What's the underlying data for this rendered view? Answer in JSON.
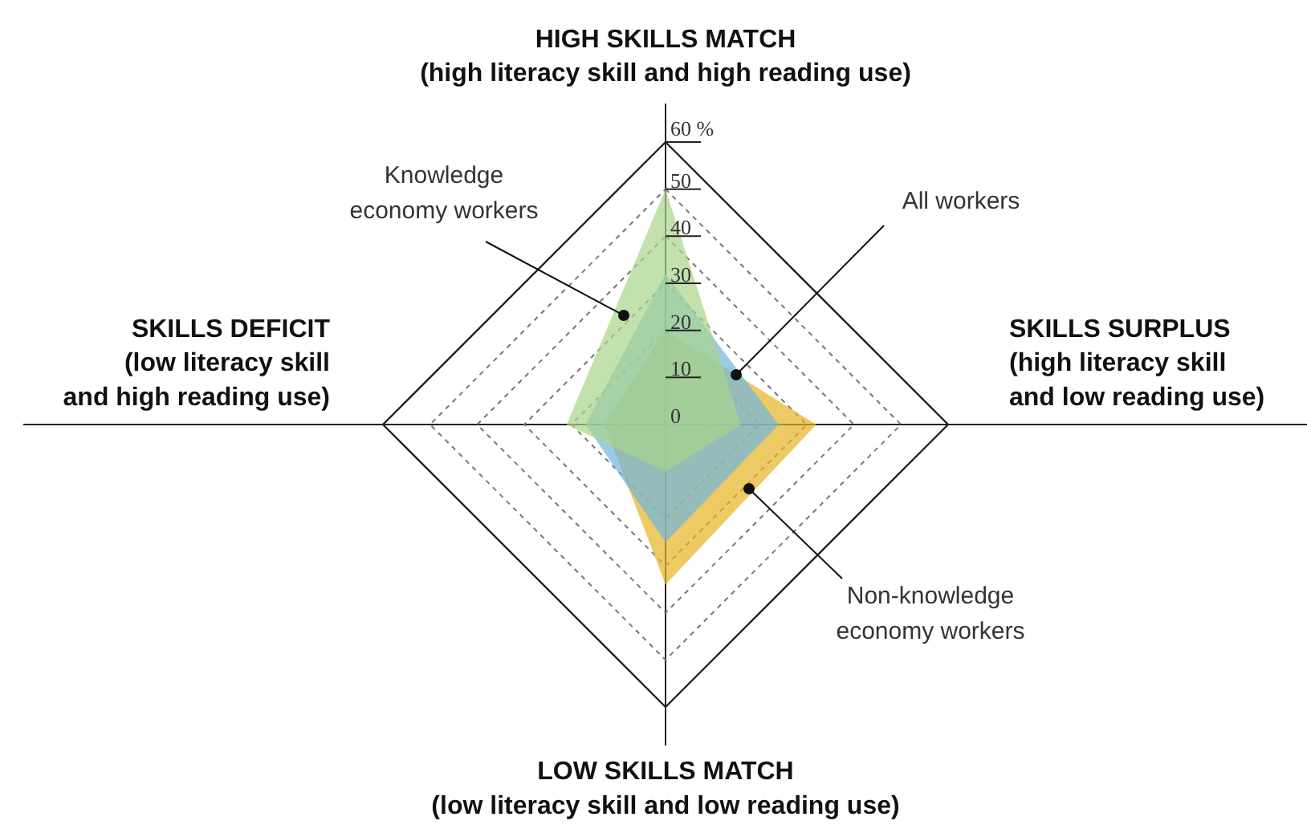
{
  "chart_data": {
    "type": "radar",
    "categories": [
      "HIGH SKILLS MATCH\n(high literacy skill and high reading use)",
      "SKILLS SURPLUS\n(high literacy skill\nand low reading use)",
      "LOW SKILLS MATCH\n(low literacy skill and low reading use)",
      "SKILLS DEFICIT\n(low literacy skill\nand high reading use)"
    ],
    "series": [
      {
        "name": "Non-knowledge\neconomy workers",
        "color": "#e6b422",
        "values": [
          20,
          32,
          34,
          13
        ]
      },
      {
        "name": "All workers",
        "color": "#6fb6de",
        "values": [
          32,
          24,
          25,
          17
        ]
      },
      {
        "name": "Knowledge\neconomy workers",
        "color": "#a9d48a",
        "values": [
          50,
          16,
          10,
          21
        ]
      }
    ],
    "ylim": [
      0,
      60
    ],
    "yticks": [
      0,
      10,
      20,
      30,
      40,
      50,
      {
        "value": 60,
        "label": "60 %"
      }
    ]
  }
}
